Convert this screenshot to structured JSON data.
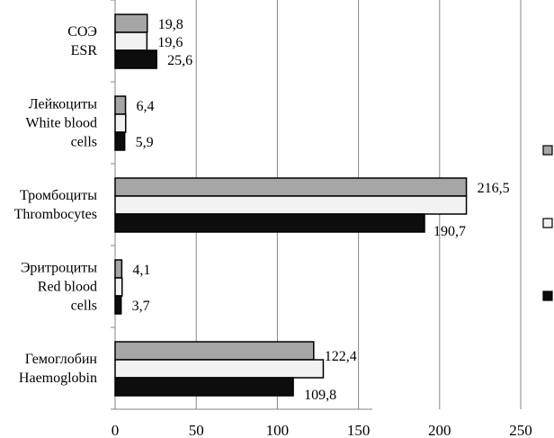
{
  "chart_data": {
    "type": "bar",
    "orientation": "horizontal",
    "categories": [
      [
        "СОЭ",
        "ESR"
      ],
      [
        "Лейкоциты",
        "White blood",
        "cells"
      ],
      [
        "Тромбоциты",
        "Thrombocytes"
      ],
      [
        "Эритроциты",
        "Red blood",
        "cells"
      ],
      [
        "Гемоглобин",
        "Haemoglobin"
      ]
    ],
    "series": [
      {
        "color": "#a6a6a6",
        "values": [
          19.8,
          6.4,
          216.5,
          4.1,
          122.4
        ],
        "labels": [
          "19,8",
          "6,4",
          "216,5",
          "4,1",
          "122,4"
        ]
      },
      {
        "color": "#f2f2f2",
        "values": [
          19.6,
          6.5,
          216.5,
          4.3,
          128.3
        ],
        "labels": [
          "19,6",
          null,
          null,
          null,
          null
        ]
      },
      {
        "color": "#0d0d0d",
        "values": [
          25.6,
          5.9,
          190.7,
          3.7,
          109.8
        ],
        "labels": [
          "25,6",
          "5,9",
          "190,7",
          "3,7",
          "109,8"
        ]
      }
    ],
    "xlim": [
      0,
      250
    ],
    "xticks": [
      "0",
      "50",
      "100",
      "150",
      "200",
      "250"
    ],
    "grid": true,
    "legend": "right",
    "title": "",
    "xlabel": "",
    "ylabel": ""
  }
}
